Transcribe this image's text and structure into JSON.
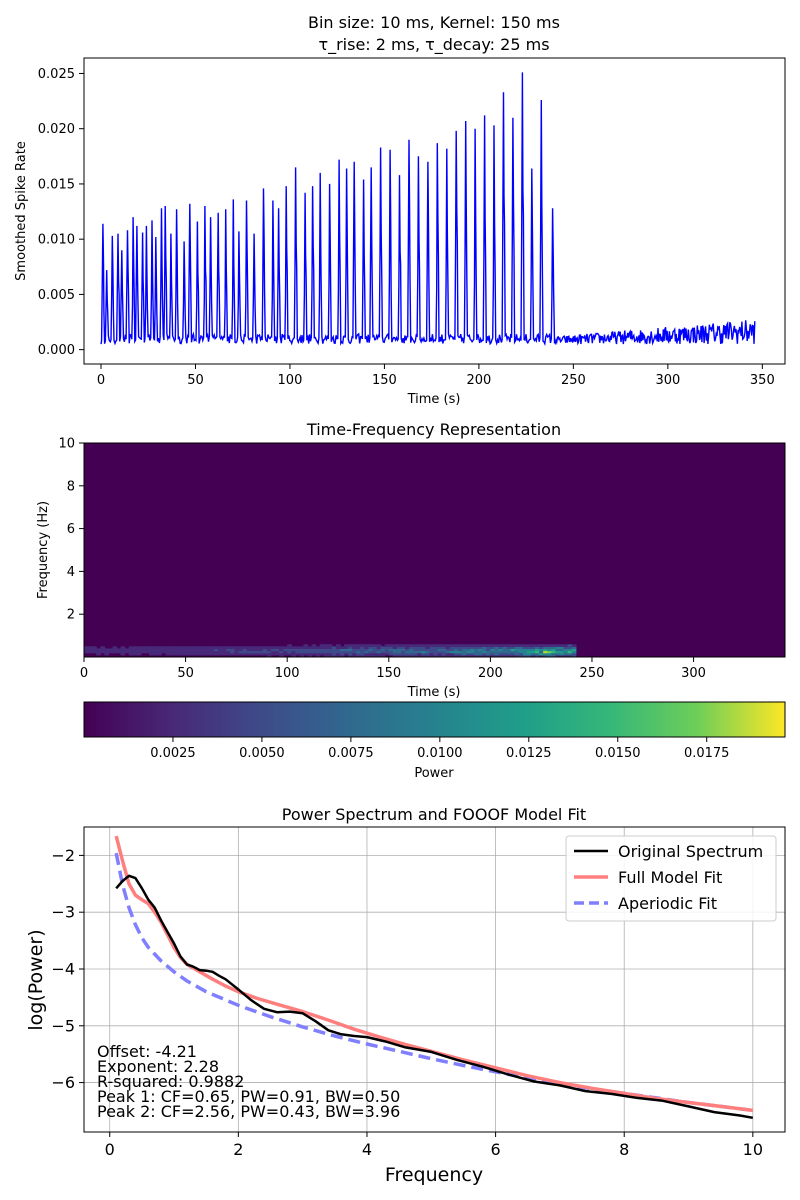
{
  "chart_data": [
    {
      "type": "line",
      "title": [
        "Bin size: 10 ms, Kernel: 150 ms",
        "τ_rise: 2 ms, τ_decay: 25 ms"
      ],
      "xlabel": "Time (s)",
      "ylabel": "Smoothed Spike Rate",
      "xlim": [
        -9,
        362
      ],
      "ylim": [
        -0.0013,
        0.0264
      ],
      "xticks": [
        0,
        50,
        100,
        150,
        200,
        250,
        300,
        350
      ],
      "yticks": [
        0.0,
        0.005,
        0.01,
        0.015,
        0.02,
        0.025
      ],
      "ytick_labels": [
        "0.000",
        "0.005",
        "0.010",
        "0.015",
        "0.020",
        "0.025"
      ],
      "grid": false,
      "color": "#0000ff",
      "series": [
        {
          "burst_times": [
            1,
            3,
            6,
            9,
            11,
            14,
            17,
            19,
            22,
            24,
            27,
            29,
            32,
            34,
            37,
            40,
            44,
            47,
            51,
            55,
            58,
            62,
            66,
            70,
            73,
            77,
            81,
            86,
            91,
            94,
            98,
            103,
            108,
            112,
            116,
            121,
            126,
            130,
            134,
            139,
            143,
            148,
            153,
            158,
            163,
            168,
            173,
            178,
            183,
            188,
            193,
            198,
            203,
            208,
            213,
            218,
            223,
            228,
            233,
            239
          ],
          "burst_peaks": [
            0.0114,
            0.0072,
            0.0103,
            0.0105,
            0.009,
            0.0108,
            0.012,
            0.0112,
            0.0106,
            0.0112,
            0.0117,
            0.0102,
            0.0128,
            0.013,
            0.0105,
            0.0127,
            0.0098,
            0.0132,
            0.0116,
            0.013,
            0.012,
            0.0124,
            0.0127,
            0.0136,
            0.0107,
            0.0135,
            0.0105,
            0.0146,
            0.0135,
            0.0128,
            0.0148,
            0.0165,
            0.0142,
            0.0148,
            0.016,
            0.015,
            0.0172,
            0.0164,
            0.017,
            0.0154,
            0.0165,
            0.0183,
            0.0181,
            0.0158,
            0.019,
            0.0175,
            0.017,
            0.0187,
            0.0182,
            0.0198,
            0.0207,
            0.02,
            0.0212,
            0.0203,
            0.0233,
            0.021,
            0.0251,
            0.0164,
            0.0226,
            0.0128
          ],
          "baseline_during_bursts": 0.0008,
          "tail_noise_range": [
            0.0005,
            0.0032
          ],
          "tail_start": 240,
          "tail_end": 346
        }
      ]
    },
    {
      "type": "heatmap",
      "title": "Time-Frequency Representation",
      "xlabel": "Time (s)",
      "ylabel": "Frequency (Hz)",
      "xlim": [
        0,
        345
      ],
      "ylim": [
        0,
        10
      ],
      "xticks": [
        0,
        50,
        100,
        150,
        200,
        250,
        300
      ],
      "yticks": [
        2,
        4,
        6,
        8,
        10
      ],
      "colormap": "viridis",
      "active_band_hz": [
        0,
        0.6
      ],
      "active_until_s": 242,
      "max_power_location": {
        "time_s": 225,
        "freq_hz": 0.2
      },
      "colorbar": {
        "label": "Power",
        "range": [
          0,
          0.0197
        ],
        "ticks": [
          0.0025,
          0.005,
          0.0075,
          0.01,
          0.0125,
          0.015,
          0.0175
        ],
        "tick_labels": [
          "0.0025",
          "0.0050",
          "0.0075",
          "0.0100",
          "0.0125",
          "0.0150",
          "0.0175"
        ]
      }
    },
    {
      "type": "line",
      "title": "Power Spectrum and FOOOF Model Fit",
      "xlabel": "Frequency",
      "ylabel": "log(Power)",
      "xlim": [
        -0.4,
        10.5
      ],
      "ylim": [
        -6.87,
        -1.5
      ],
      "xticks": [
        0,
        2,
        4,
        6,
        8,
        10
      ],
      "yticks": [
        -2,
        -3,
        -4,
        -5,
        -6
      ],
      "grid": true,
      "legend_position": "top-right",
      "series": [
        {
          "name": "Original Spectrum",
          "color": "#000000",
          "style": "solid",
          "x": [
            0.1,
            0.2,
            0.3,
            0.4,
            0.5,
            0.6,
            0.7,
            0.8,
            0.9,
            1.0,
            1.1,
            1.2,
            1.3,
            1.4,
            1.5,
            1.6,
            1.7,
            1.8,
            1.9,
            2.0,
            2.2,
            2.4,
            2.6,
            2.8,
            3.0,
            3.2,
            3.4,
            3.6,
            3.8,
            4.0,
            4.3,
            4.6,
            5.0,
            5.4,
            5.8,
            6.2,
            6.6,
            7.0,
            7.4,
            7.8,
            8.2,
            8.6,
            9.0,
            9.4,
            9.8,
            10.0
          ],
          "y": [
            -2.58,
            -2.45,
            -2.36,
            -2.4,
            -2.58,
            -2.78,
            -2.92,
            -3.15,
            -3.35,
            -3.55,
            -3.78,
            -3.92,
            -3.96,
            -4.02,
            -4.03,
            -4.05,
            -4.12,
            -4.18,
            -4.27,
            -4.36,
            -4.55,
            -4.7,
            -4.76,
            -4.75,
            -4.78,
            -4.92,
            -5.08,
            -5.15,
            -5.18,
            -5.2,
            -5.28,
            -5.38,
            -5.46,
            -5.6,
            -5.72,
            -5.86,
            -5.98,
            -6.05,
            -6.15,
            -6.2,
            -6.27,
            -6.32,
            -6.42,
            -6.52,
            -6.58,
            -6.62
          ]
        },
        {
          "name": "Full Model Fit",
          "color": "#ff7f7f",
          "style": "solid",
          "x": [
            0.1,
            0.2,
            0.3,
            0.4,
            0.5,
            0.6,
            0.7,
            0.8,
            0.9,
            1.0,
            1.1,
            1.2,
            1.4,
            1.6,
            1.8,
            2.0,
            2.3,
            2.6,
            3.0,
            3.4,
            3.8,
            4.2,
            4.6,
            5.0,
            5.5,
            6.0,
            6.5,
            7.0,
            7.5,
            8.0,
            8.5,
            9.0,
            9.5,
            10.0
          ],
          "y": [
            -1.66,
            -2.1,
            -2.5,
            -2.7,
            -2.78,
            -2.85,
            -3.0,
            -3.18,
            -3.4,
            -3.62,
            -3.8,
            -3.92,
            -4.05,
            -4.18,
            -4.3,
            -4.4,
            -4.52,
            -4.62,
            -4.75,
            -4.9,
            -5.06,
            -5.2,
            -5.33,
            -5.45,
            -5.6,
            -5.74,
            -5.88,
            -6.0,
            -6.1,
            -6.19,
            -6.28,
            -6.35,
            -6.42,
            -6.49
          ]
        },
        {
          "name": "Aperiodic Fit",
          "color": "#7f7fff",
          "style": "dashed",
          "x": [
            0.1,
            0.2,
            0.3,
            0.4,
            0.5,
            0.6,
            0.8,
            1.0,
            1.2,
            1.5,
            2.0,
            2.5,
            3.0,
            3.5,
            4.0,
            4.5,
            5.0,
            5.5,
            6.0,
            6.5,
            7.0,
            7.5,
            8.0,
            8.5,
            9.0,
            9.5,
            10.0
          ],
          "y": [
            -1.96,
            -2.52,
            -2.92,
            -3.22,
            -3.45,
            -3.62,
            -3.86,
            -4.05,
            -4.21,
            -4.4,
            -4.64,
            -4.84,
            -5.02,
            -5.18,
            -5.32,
            -5.45,
            -5.58,
            -5.7,
            -5.81,
            -5.92,
            -6.02,
            -6.11,
            -6.19,
            -6.27,
            -6.35,
            -6.42,
            -6.49
          ]
        }
      ],
      "annotation_lines": [
        "Offset: -4.21",
        "Exponent: 2.28",
        "R-squared: 0.9882",
        "Peak 1: CF=0.65, PW=0.91, BW=0.50",
        "Peak 2: CF=2.56, PW=0.43, BW=3.96"
      ]
    }
  ]
}
